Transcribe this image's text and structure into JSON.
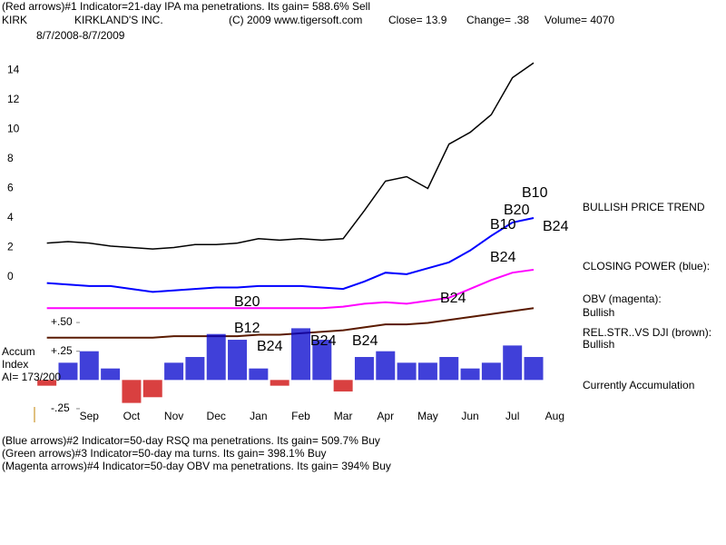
{
  "header": {
    "line1": "(Red arrows)#1 Indicator=21-day IPA ma penetrations.  Its gain= 588.6% Sell",
    "symbol": "KIRK",
    "company": "KIRKLAND'S INC.",
    "copyright": "(C) 2009 www.tigersoft.com",
    "close": "Close=  13.9",
    "change": "Change= .38",
    "volume": "Volume= 4070",
    "range": "8/7/2008-8/7/2009"
  },
  "chart_data": [
    {
      "type": "line",
      "categories": [
        null,
        null,
        "Sep",
        null,
        "Oct",
        null,
        "Nov",
        null,
        "Dec",
        null,
        "Jan",
        null,
        "Feb",
        null,
        "Mar",
        null,
        "Apr",
        null,
        "May",
        null,
        "Jun",
        null,
        "Jul",
        null,
        "Aug"
      ],
      "series": [
        {
          "name": "Price",
          "color": "#000000",
          "values": [
            2.3,
            2.4,
            2.3,
            2.1,
            2.0,
            1.9,
            2.0,
            2.2,
            2.2,
            2.3,
            2.6,
            2.5,
            2.6,
            2.5,
            2.6,
            4.5,
            6.5,
            6.8,
            6.0,
            9.0,
            9.8,
            11.0,
            13.5,
            14.5,
            null
          ]
        },
        {
          "name": "Closing Power",
          "color": "#0000ff",
          "values": [
            -0.4,
            -0.5,
            -0.6,
            -0.6,
            -0.8,
            -1.0,
            -0.9,
            -0.8,
            -0.7,
            -0.7,
            -0.6,
            -0.6,
            -0.6,
            -0.7,
            -0.8,
            -0.3,
            0.3,
            0.2,
            0.6,
            1.0,
            1.8,
            2.8,
            3.7,
            4.0,
            null
          ]
        },
        {
          "name": "OBV",
          "color": "#ff00ff",
          "values": [
            -2.1,
            -2.1,
            -2.1,
            -2.1,
            -2.1,
            -2.1,
            -2.1,
            -2.1,
            -2.1,
            -2.1,
            -2.1,
            -2.1,
            -2.1,
            -2.1,
            -2.0,
            -1.8,
            -1.7,
            -1.8,
            -1.6,
            -1.4,
            -0.8,
            -0.2,
            0.3,
            0.5,
            null
          ]
        },
        {
          "name": "Rel. Str. vs DJI",
          "color": "#5a1a00",
          "values": [
            -4.1,
            -4.1,
            -4.1,
            -4.1,
            -4.1,
            -4.1,
            -4.0,
            -4.0,
            -4.0,
            -4.0,
            -3.9,
            -3.9,
            -3.8,
            -3.7,
            -3.6,
            -3.4,
            -3.2,
            -3.2,
            -3.1,
            -2.9,
            -2.7,
            -2.5,
            -2.3,
            -2.1,
            null
          ]
        }
      ],
      "ylim": [
        -4.3,
        16.3
      ],
      "yticks": [
        0,
        2,
        4,
        6,
        8,
        10,
        12,
        14
      ],
      "annotations": [
        "B20",
        "B10",
        "B10",
        "B24",
        "B24",
        "B20",
        "B24"
      ]
    },
    {
      "type": "bar",
      "color": "#0000cc",
      "negative_color": "#cc0000",
      "values": [
        -0.05,
        0.15,
        0.25,
        0.1,
        -0.2,
        -0.15,
        0.15,
        0.2,
        0.4,
        0.35,
        0.1,
        -0.05,
        0.45,
        0.35,
        -0.1,
        0.2,
        0.25,
        0.15,
        0.15,
        0.2,
        0.1,
        0.15,
        0.3,
        0.2,
        null
      ],
      "ylim": [
        -0.29,
        0.54
      ],
      "yticks": [
        {
          "value": 0.5,
          "label": "+.50"
        },
        {
          "value": 0.25,
          "label": "+.25"
        },
        {
          "value": -0.25,
          "label": "-.25"
        }
      ],
      "annotations": [
        "B12",
        "B24",
        "B24",
        "B24"
      ]
    }
  ],
  "side_labels": [
    "BULLISH PRICE TREND",
    "CLOSING POWER (blue):",
    "OBV (magenta):",
    "Bullish",
    "REL.STR..VS DJI (brown):",
    "Bullish",
    "Currently Accumulation"
  ],
  "accum_labels": [
    "Accum",
    "Index",
    "AI= 173/200"
  ],
  "footer": [
    "(Blue arrows)#2 Indicator=50-day RSQ ma penetrations.  Its gain= 509.7% Buy",
    "(Green arrows)#3 Indicator=50-day ma turns.  Its gain= 398.1% Buy",
    "(Magenta arrows)#4 Indicator=50-day OBV ma penetrations.  Its gain= 394% Buy"
  ]
}
